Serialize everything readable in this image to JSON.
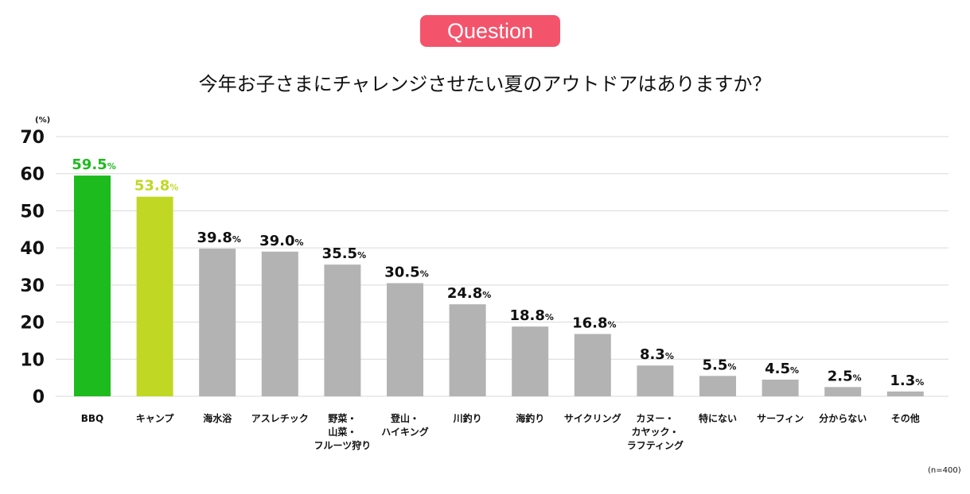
{
  "badge": "Question",
  "title": "今年お子さまにチャレンジさせたい夏のアウトドアはありますか？",
  "unit_label": "(%)",
  "sample_note": "(n=400)",
  "colors": {
    "first": "#1dbb1d",
    "second": "#c0d823",
    "other": "#b3b3b3",
    "grid": "#d9d9d9",
    "badge": "#f3546b"
  },
  "chart_data": {
    "type": "bar",
    "ylim": [
      0,
      70
    ],
    "yticks": [
      "0",
      "10",
      "20",
      "30",
      "40",
      "50",
      "60",
      "70"
    ],
    "grid": true,
    "categories": [
      [
        "BBQ"
      ],
      [
        "キャンプ"
      ],
      [
        "海水浴"
      ],
      [
        "アスレチック"
      ],
      [
        "野菜・",
        "山菜・",
        "フルーツ狩り"
      ],
      [
        "登山・",
        "ハイキング"
      ],
      [
        "川釣り"
      ],
      [
        "海釣り"
      ],
      [
        "サイクリング"
      ],
      [
        "カヌー・",
        "カヤック・",
        "ラフティング"
      ],
      [
        "特にない"
      ],
      [
        "サーフィン"
      ],
      [
        "分からない"
      ],
      [
        "その他"
      ]
    ],
    "values": [
      59.5,
      53.8,
      39.8,
      39.0,
      35.5,
      30.5,
      24.8,
      18.8,
      16.8,
      8.3,
      5.5,
      4.5,
      2.5,
      1.3
    ],
    "value_labels": [
      "59.5",
      "53.8",
      "39.8",
      "39.0",
      "35.5",
      "30.5",
      "24.8",
      "18.8",
      "16.8",
      "8.3",
      "5.5",
      "4.5",
      "2.5",
      "1.3"
    ],
    "value_suffix": "%"
  }
}
